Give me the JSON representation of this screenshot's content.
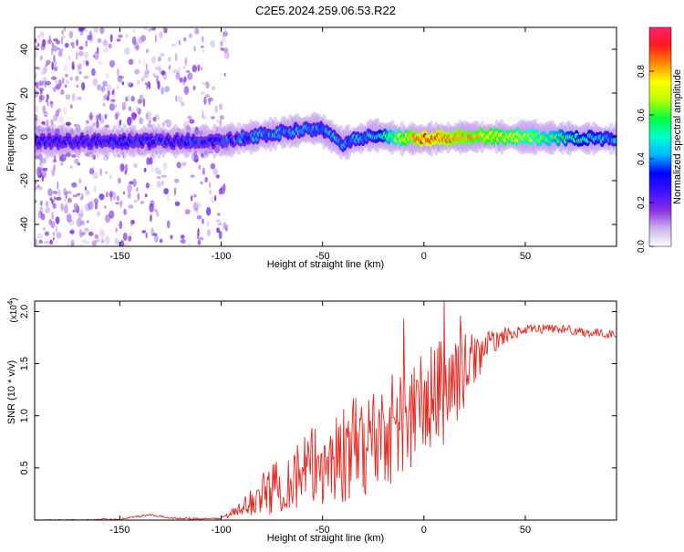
{
  "title": "C2E5.2024.259.06.53.R22",
  "colors": {
    "background": "#ffffff",
    "axis": "#000000",
    "snr_line": "#e8241c",
    "colormap": [
      "#ffffff",
      "#c9b2ec",
      "#8a2be2",
      "#3a14ff",
      "#0000ff",
      "#00b7ff",
      "#00ffd0",
      "#00ff3c",
      "#b4ff00",
      "#ffff00",
      "#ff8c00",
      "#ff1a1a",
      "#ff2070"
    ]
  },
  "chart_data": [
    {
      "type": "heatmap",
      "xlabel": "Height of straight line (km)",
      "ylabel": "Frequency (Hz)",
      "xlim": [
        -192,
        95
      ],
      "ylim": [
        -50,
        50
      ],
      "xticks": [
        -150,
        -100,
        -50,
        0,
        50
      ],
      "yticks": [
        -40,
        -20,
        0,
        20,
        40
      ],
      "grid": false,
      "colorbar": {
        "label": "Normalized spectral amplitude",
        "range": [
          0,
          1
        ],
        "ticks": [
          "0.0",
          "0.2",
          "0.4",
          "0.6",
          "0.8"
        ]
      },
      "ridge_frequency_hz": [
        {
          "x": -180,
          "f": -2
        },
        {
          "x": -150,
          "f": -2
        },
        {
          "x": -120,
          "f": -2
        },
        {
          "x": -100,
          "f": -2
        },
        {
          "x": -85,
          "f": 0
        },
        {
          "x": -70,
          "f": 2
        },
        {
          "x": -52,
          "f": 4
        },
        {
          "x": -40,
          "f": -3
        },
        {
          "x": -25,
          "f": 1
        },
        {
          "x": -10,
          "f": -1
        },
        {
          "x": 0,
          "f": -1
        },
        {
          "x": 20,
          "f": 0
        },
        {
          "x": 50,
          "f": 0
        },
        {
          "x": 95,
          "f": -1
        }
      ],
      "ridge_amplitude": [
        {
          "x": -180,
          "a": 0.3
        },
        {
          "x": -150,
          "a": 0.32
        },
        {
          "x": -120,
          "a": 0.33
        },
        {
          "x": -100,
          "a": 0.35
        },
        {
          "x": -80,
          "a": 0.4
        },
        {
          "x": -50,
          "a": 0.4
        },
        {
          "x": -25,
          "a": 0.42
        },
        {
          "x": -10,
          "a": 0.75
        },
        {
          "x": 0,
          "a": 0.88
        },
        {
          "x": 15,
          "a": 0.82
        },
        {
          "x": 30,
          "a": 0.78
        },
        {
          "x": 50,
          "a": 0.7
        },
        {
          "x": 70,
          "a": 0.55
        },
        {
          "x": 95,
          "a": 0.4
        }
      ]
    },
    {
      "type": "line",
      "xlabel": "Height of straight line (km)",
      "ylabel": "SNR (10 * v/v)",
      "y_multiplier_label": "(x10",
      "y_multiplier_exp": "4",
      "y_multiplier_close": ")",
      "xlim": [
        -192,
        95
      ],
      "ylim": [
        0,
        2.1
      ],
      "xticks": [
        -150,
        -100,
        -50,
        0,
        50
      ],
      "yticks": [
        {
          "value": 0.5,
          "label": "0.5"
        },
        {
          "value": 1.0,
          "label": "1.0"
        },
        {
          "value": 1.5,
          "label": "1.5"
        },
        {
          "value": 2.0,
          "label": "2.0"
        }
      ],
      "grid": false,
      "series": [
        {
          "color": "#e8241c",
          "points": [
            {
              "x": -192,
              "y": 0.0
            },
            {
              "x": -170,
              "y": 0.0
            },
            {
              "x": -150,
              "y": 0.01
            },
            {
              "x": -135,
              "y": 0.05
            },
            {
              "x": -125,
              "y": 0.02
            },
            {
              "x": -105,
              "y": 0.01
            },
            {
              "x": -100,
              "y": 0.02
            },
            {
              "x": -90,
              "y": 0.1
            },
            {
              "x": -80,
              "y": 0.25
            },
            {
              "x": -70,
              "y": 0.35
            },
            {
              "x": -60,
              "y": 0.45
            },
            {
              "x": -50,
              "y": 0.55
            },
            {
              "x": -40,
              "y": 0.62
            },
            {
              "x": -30,
              "y": 0.72
            },
            {
              "x": -20,
              "y": 0.85
            },
            {
              "x": -10,
              "y": 0.95
            },
            {
              "x": 0,
              "y": 1.1
            },
            {
              "x": 10,
              "y": 1.25
            },
            {
              "x": 20,
              "y": 1.45
            },
            {
              "x": 30,
              "y": 1.65
            },
            {
              "x": 40,
              "y": 1.77
            },
            {
              "x": 50,
              "y": 1.82
            },
            {
              "x": 60,
              "y": 1.84
            },
            {
              "x": 70,
              "y": 1.83
            },
            {
              "x": 80,
              "y": 1.8
            },
            {
              "x": 95,
              "y": 1.78
            }
          ],
          "noise_amplitude": [
            {
              "x": -192,
              "a": 0.005
            },
            {
              "x": -100,
              "a": 0.01
            },
            {
              "x": -90,
              "a": 0.08
            },
            {
              "x": -75,
              "a": 0.25
            },
            {
              "x": -55,
              "a": 0.4
            },
            {
              "x": -35,
              "a": 0.5
            },
            {
              "x": -15,
              "a": 0.55
            },
            {
              "x": 0,
              "a": 0.55
            },
            {
              "x": 12,
              "a": 0.55
            },
            {
              "x": 25,
              "a": 0.25
            },
            {
              "x": 35,
              "a": 0.1
            },
            {
              "x": 45,
              "a": 0.05
            },
            {
              "x": 95,
              "a": 0.04
            }
          ],
          "peaks": [
            {
              "x": -10,
              "y": 1.93
            },
            {
              "x": 10,
              "y": 2.1
            },
            {
              "x": 18,
              "y": 1.96
            }
          ]
        }
      ]
    }
  ]
}
